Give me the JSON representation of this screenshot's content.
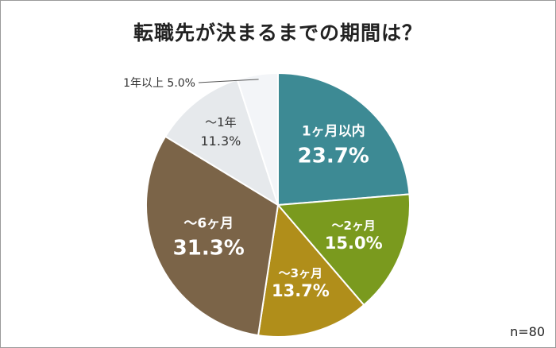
{
  "chart_data": {
    "type": "pie",
    "title": "転職先が決まるまでの期間は？",
    "note": "n=80",
    "slices": [
      {
        "label": "1ヶ月以内",
        "value": 23.7,
        "display": "23.7%",
        "color": "#3d8a94"
      },
      {
        "label": "～2ヶ月",
        "value": 15.0,
        "display": "15.0%",
        "color": "#7a9a1e"
      },
      {
        "label": "～3ヶ月",
        "value": 13.7,
        "display": "13.7%",
        "color": "#b08e1a"
      },
      {
        "label": "～6ヶ月",
        "value": 31.3,
        "display": "31.3%",
        "color": "#7b6448"
      },
      {
        "label": "～1年",
        "value": 11.3,
        "display": "11.3%",
        "color": "#e6e9ec"
      },
      {
        "label": "1年以上",
        "value": 5.0,
        "display": "5.0%",
        "color": "#f3f5f8"
      }
    ]
  }
}
